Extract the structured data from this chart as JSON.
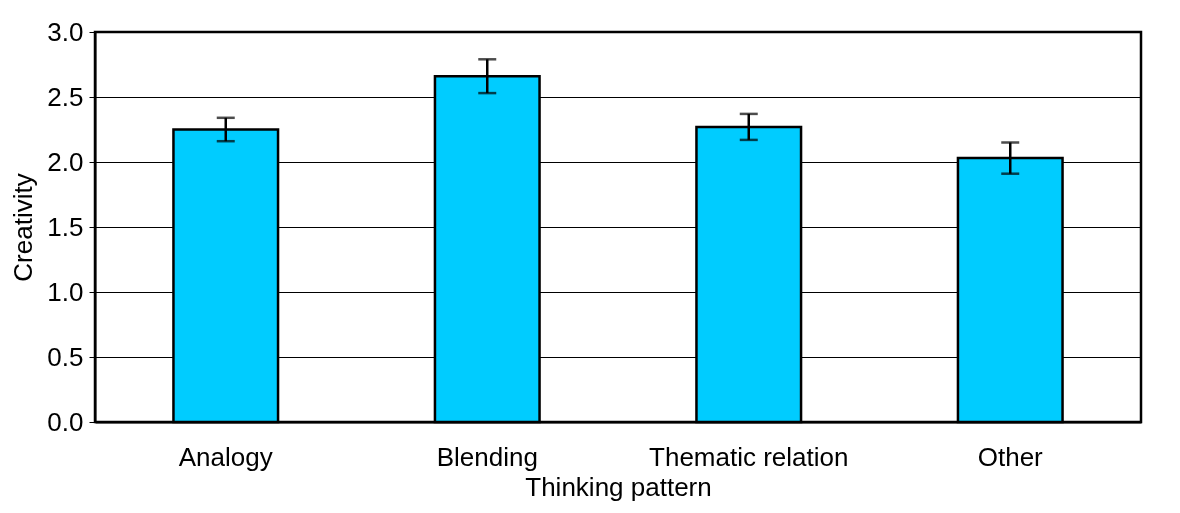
{
  "chart_data": {
    "type": "bar",
    "xlabel": "Thinking pattern",
    "ylabel": "Creativity",
    "categories": [
      "Analogy",
      "Blending",
      "Thematic relation",
      "Other"
    ],
    "values": [
      2.25,
      2.66,
      2.27,
      2.03
    ],
    "errors": [
      0.09,
      0.13,
      0.1,
      0.12
    ],
    "color": "#00ccff",
    "ylim": [
      0,
      3
    ],
    "yticks": [
      {
        "value": 0,
        "label": "0.0"
      },
      0.5,
      {
        "value": 1,
        "label": "1.0"
      },
      1.5,
      {
        "value": 2,
        "label": "2.0"
      },
      2.5,
      {
        "value": 3,
        "label": "3.0"
      }
    ],
    "grid": "y"
  }
}
